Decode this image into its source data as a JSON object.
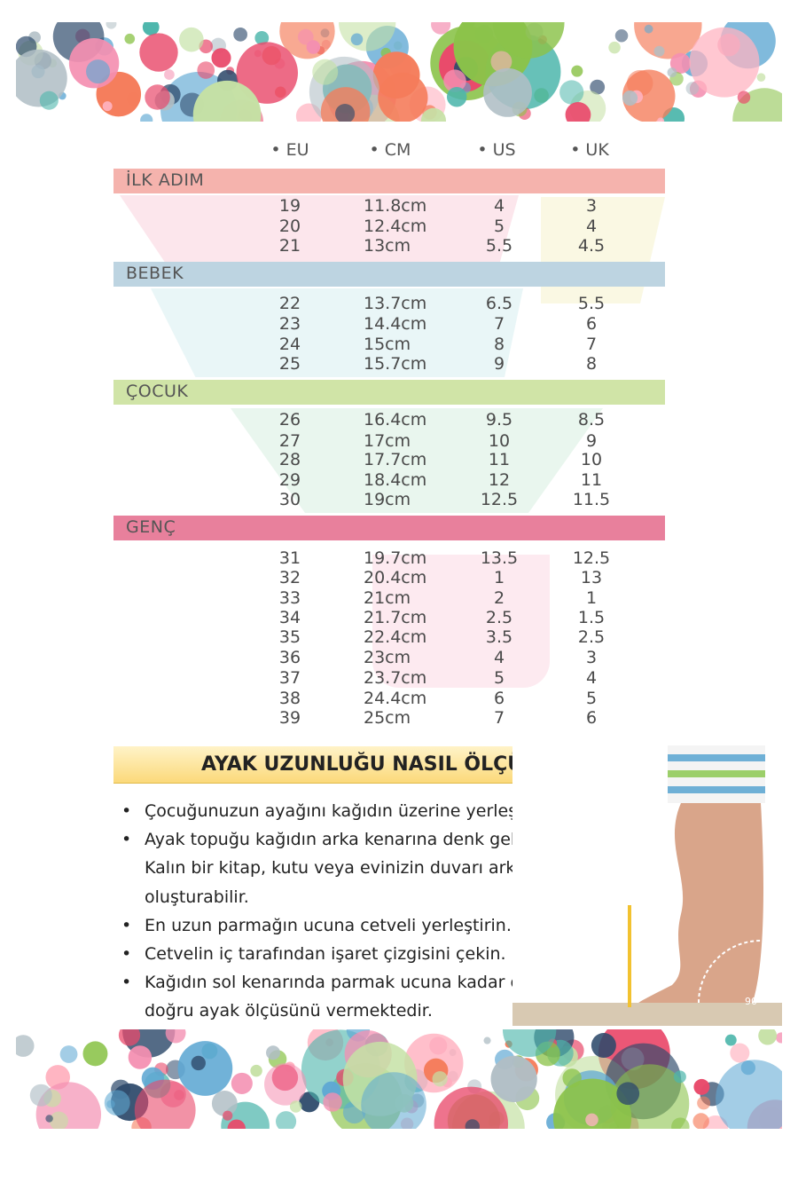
{
  "columns": [
    "• EU",
    "• CM",
    "• US",
    "• UK"
  ],
  "sections": [
    {
      "title": "İLK ADIM",
      "color": "#f5b3ad",
      "rows": [
        [
          "19",
          "11.8cm",
          "4",
          "3"
        ],
        [
          "20",
          "12.4cm",
          "5",
          "4"
        ],
        [
          "21",
          "13cm",
          "5.5",
          "4.5"
        ]
      ]
    },
    {
      "title": "BEBEK",
      "color": "#bdd4e1",
      "rows": [
        [
          "22",
          "13.7cm",
          "6.5",
          "5.5"
        ],
        [
          "23",
          "14.4cm",
          "7",
          "6"
        ],
        [
          "24",
          "15cm",
          "8",
          "7"
        ],
        [
          "25",
          "15.7cm",
          "9",
          "8"
        ]
      ]
    },
    {
      "title": "ÇOCUK",
      "color": "#d0e4a7",
      "rows": [
        [
          "26",
          "16.4cm",
          "9.5",
          "8.5"
        ],
        [
          "27",
          "17cm",
          "10",
          "9"
        ],
        [
          "28",
          "17.7cm",
          "11",
          "10"
        ],
        [
          "29",
          "18.4cm",
          "12",
          "11"
        ],
        [
          "30",
          "19cm",
          "12.5",
          "11.5"
        ]
      ]
    },
    {
      "title": "GENÇ",
      "color": "#e8809c",
      "rows": [
        [
          "31",
          "19.7cm",
          "13.5",
          "12.5"
        ],
        [
          "32",
          "20.4cm",
          "1",
          "13"
        ],
        [
          "33",
          "21cm",
          "2",
          "1"
        ],
        [
          "34",
          "21.7cm",
          "2.5",
          "1.5"
        ],
        [
          "35",
          "22.4cm",
          "3.5",
          "2.5"
        ],
        [
          "36",
          "23cm",
          "4",
          "3"
        ],
        [
          "37",
          "23.7cm",
          "5",
          "4"
        ],
        [
          "38",
          "24.4cm",
          "6",
          "5"
        ],
        [
          "39",
          "25cm",
          "7",
          "6"
        ]
      ]
    }
  ],
  "how_to": {
    "title": "AYAK UZUNLUĞU NASIL ÖLÇÜLÜR?",
    "steps": [
      "Çocuğunuzun ayağını kağıdın üzerine yerleştirin.",
      "Ayak topuğu kağıdın arka kenarına denk gelmelidir. Kalın bir kitap, kutu veya evinizin duvarı arka sınırı oluşturabilir.",
      "En uzun parmağın ucuna cetveli yerleştirin.",
      "Cetvelin iç tarafından işaret çizgisini çekin.",
      "Kağıdın sol kenarında parmak ucuna kadar olan kısım doğru ayak ölçüsünü vermektedir."
    ],
    "photo_angle_label": "90°"
  },
  "dot_colors": [
    "#e94a6b",
    "#2e4a6b",
    "#8bc34a",
    "#f48fb1",
    "#5fa8d3",
    "#f57c5a",
    "#c5e1a5",
    "#b0bec5",
    "#ffb3c1",
    "#4db6ac"
  ]
}
